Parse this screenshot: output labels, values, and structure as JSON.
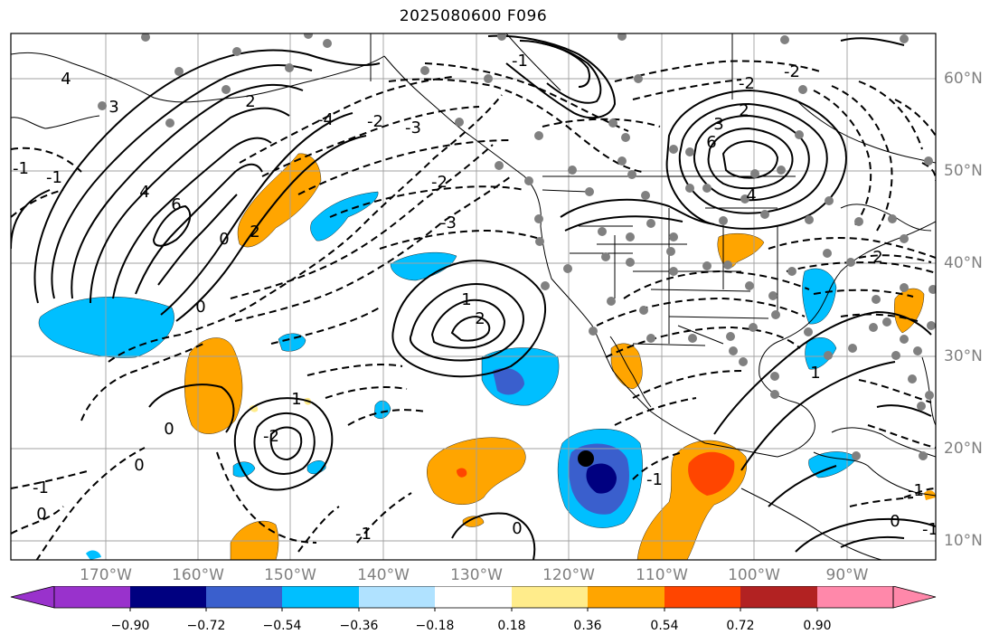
{
  "title": "2025080600 F096",
  "lat_labels": [
    "60°N",
    "50°N",
    "40°N",
    "30°N",
    "20°N",
    "10°N"
  ],
  "lon_labels": [
    "170°W",
    "160°W",
    "150°W",
    "140°W",
    "130°W",
    "120°W",
    "110°W",
    "100°W",
    "90°W"
  ],
  "contour_labels": [
    "4",
    "3",
    "2",
    "6",
    "4",
    "2",
    "0",
    "-1",
    "-2",
    "-3",
    "-4",
    "-2",
    "-3",
    "-1",
    "0",
    "2",
    "1",
    "0",
    "-1",
    "-2",
    "0",
    "1",
    "2",
    "4",
    "6",
    "3",
    "-2",
    "-1",
    "-1",
    "0",
    "-1",
    "2",
    "1",
    "0",
    "-1",
    "-2",
    "-1",
    "0"
  ],
  "colorbar": {
    "ticks": [
      "−0.90",
      "−0.72",
      "−0.54",
      "−0.36",
      "−0.18",
      "0.18",
      "0.36",
      "0.54",
      "0.72",
      "0.90"
    ],
    "colors": [
      "#9932cc",
      "#000080",
      "#3a5fcd",
      "#00bfff",
      "#b0e2ff",
      "#ffffff",
      "#ffec8b",
      "#ffa500",
      "#ff4500",
      "#b22222",
      "#ff88aa"
    ]
  },
  "shading_colors": {
    "light_blue": "#00bfff",
    "blue": "#3a5fcd",
    "navy": "#000080",
    "orange": "#ffa500",
    "red_orange": "#ff4500"
  },
  "station_marker_color": "#808080"
}
